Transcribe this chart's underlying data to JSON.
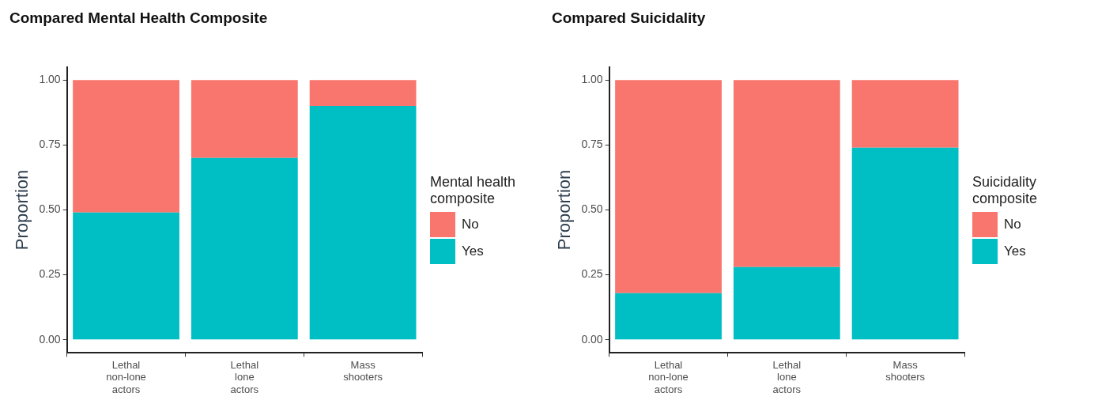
{
  "chart_data": [
    {
      "type": "bar",
      "title": "Compared Mental Health Composite",
      "ylabel": "Proportion",
      "legend_title": "Mental health composite",
      "stacked": true,
      "grid": false,
      "legend": "right",
      "categories": [
        "Lethal non-lone actors",
        "Lethal lone actors",
        "Mass shooters"
      ],
      "ylim": [
        -0.05,
        1.05
      ],
      "yticks": [
        {
          "value": 0,
          "label": "0.00"
        },
        {
          "value": 0.25,
          "label": "0.25"
        },
        {
          "value": 0.5,
          "label": "0.50"
        },
        {
          "value": 0.75,
          "label": "0.75"
        },
        {
          "value": 1,
          "label": "1.00"
        }
      ],
      "series": [
        {
          "name": "Yes",
          "color": "#00bfc4",
          "values": [
            0.49,
            0.7,
            0.9
          ]
        },
        {
          "name": "No",
          "color": "#f8766d",
          "values": [
            0.51,
            0.3,
            0.1
          ]
        }
      ]
    },
    {
      "type": "bar",
      "title": "Compared Suicidality",
      "ylabel": "Proportion",
      "legend_title": "Suicidality composite",
      "stacked": true,
      "grid": false,
      "legend": "right",
      "categories": [
        "Lethal non-lone actors",
        "Lethal lone actors",
        "Mass shooters"
      ],
      "ylim": [
        -0.05,
        1.05
      ],
      "yticks": [
        {
          "value": 0,
          "label": "0.00"
        },
        {
          "value": 0.25,
          "label": "0.25"
        },
        {
          "value": 0.5,
          "label": "0.50"
        },
        {
          "value": 0.75,
          "label": "0.75"
        },
        {
          "value": 1,
          "label": "1.00"
        }
      ],
      "series": [
        {
          "name": "Yes",
          "color": "#00bfc4",
          "values": [
            0.18,
            0.28,
            0.74
          ]
        },
        {
          "name": "No",
          "color": "#f8766d",
          "values": [
            0.82,
            0.72,
            0.26
          ]
        }
      ]
    }
  ]
}
